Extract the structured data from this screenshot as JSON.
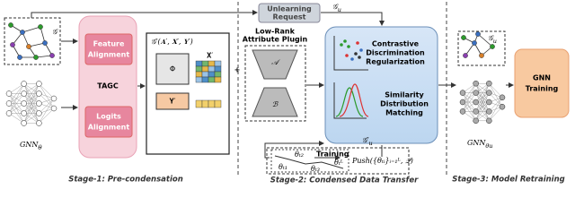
{
  "stage1": {
    "graph_label": "𝒢",
    "model_label": {
      "base": "GNN",
      "sub": "θ"
    },
    "tagc": {
      "feature_alignment": [
        "Feature",
        "Alignment"
      ],
      "title": "TAGC",
      "logits_alignment": [
        "Logits",
        "Alignment"
      ]
    },
    "condensed_graph": "𝒢′(𝐀′, 𝐗′, 𝐘′)",
    "phi": "Φ",
    "x_prime": "𝐗′",
    "y_prime": "𝐘′",
    "caption": "Stage-1:  Pre-condensation"
  },
  "stage2": {
    "plus": "+",
    "plugin_title": [
      "Low-Rank",
      "Attribute Plugin"
    ],
    "a": "𝒜",
    "b": "ℬ",
    "unlearning_request": [
      "Unlearning",
      "Request"
    ],
    "unlearned_graph": {
      "base": "𝒢",
      "sub": "u"
    },
    "contrastive": [
      "Contrastive",
      "Discrimination",
      "Regularization"
    ],
    "similarity": [
      "Similarity",
      "Distribution",
      "Matching"
    ],
    "training": "Training",
    "trajectory_labels": [
      "θₜ₁",
      "θₜ₂",
      "θₜ₃",
      "θₜᴸ"
    ],
    "condensed_unlearned": {
      "base": "𝒢′",
      "sub": "u"
    },
    "push": "Push({θₜᵢ}ᵢ₌₁ᴸ, 𝒬)",
    "caption": "Stage-2:  Condensed Data Transfer"
  },
  "stage3": {
    "graph_label": {
      "base": "𝒢",
      "sub": "u"
    },
    "model_label": {
      "base": "GNN",
      "sub": "θu"
    },
    "gnn_training": [
      "GNN",
      "Training"
    ],
    "caption": "Stage-3:  Model Retraining"
  }
}
